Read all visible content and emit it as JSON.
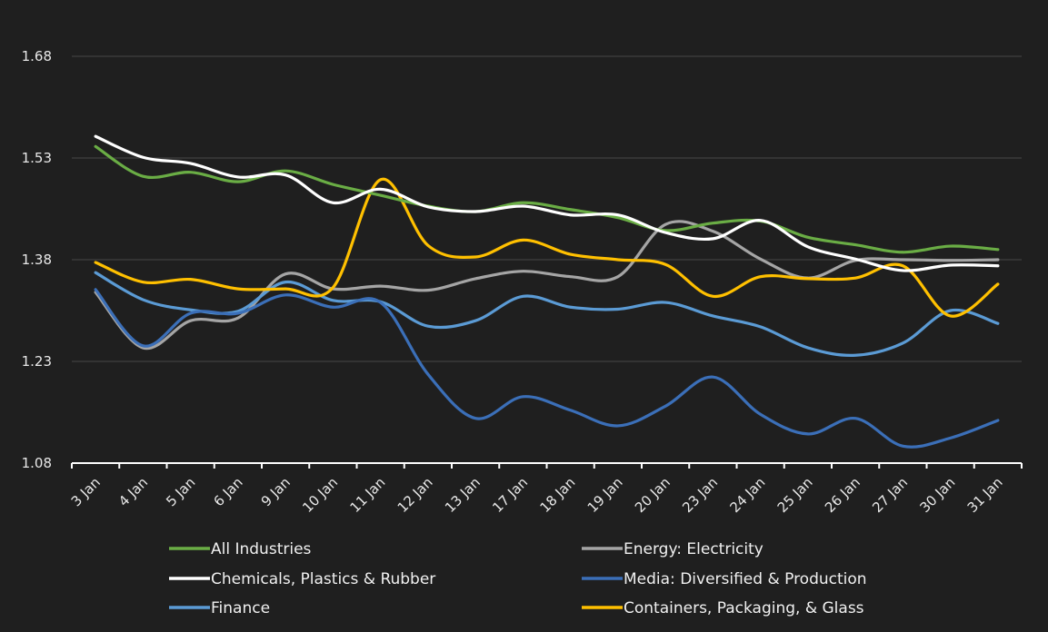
{
  "chart_data": {
    "type": "line",
    "title": "",
    "xlabel": "",
    "ylabel": "",
    "ylim": [
      1.08,
      1.68
    ],
    "yticks": [
      "1.08",
      "1.23",
      "1.38",
      "1.53",
      "1.68"
    ],
    "ytick_values": [
      1.08,
      1.23,
      1.38,
      1.53,
      1.68
    ],
    "grid": true,
    "smooth": true,
    "legend_position": "bottom",
    "categories": [
      "3 Jan",
      "4 Jan",
      "5 Jan",
      "6 Jan",
      "9 Jan",
      "10 Jan",
      "11 Jan",
      "12 Jan",
      "13 Jan",
      "17 Jan",
      "18 Jan",
      "19 Jan",
      "20 Jan",
      "23 Jan",
      "24 Jan",
      "25 Jan",
      "26 Jan",
      "27 Jan",
      "30 Jan",
      "31 Jan"
    ],
    "series": [
      {
        "name": "All Industries",
        "color": "#6aad45",
        "values": [
          1.547,
          1.503,
          1.509,
          1.495,
          1.511,
          1.491,
          1.475,
          1.459,
          1.451,
          1.464,
          1.454,
          1.442,
          1.423,
          1.434,
          1.437,
          1.413,
          1.402,
          1.391,
          1.4,
          1.395
        ]
      },
      {
        "name": "Energy: Electricity",
        "color": "#a5a5a5",
        "values": [
          1.332,
          1.25,
          1.29,
          1.294,
          1.359,
          1.337,
          1.341,
          1.335,
          1.352,
          1.363,
          1.355,
          1.355,
          1.432,
          1.422,
          1.381,
          1.353,
          1.379,
          1.38,
          1.379,
          1.38
        ]
      },
      {
        "name": "Chemicals, Plastics & Rubber",
        "color": "#ffffff",
        "values": [
          1.562,
          1.531,
          1.522,
          1.502,
          1.505,
          1.464,
          1.484,
          1.458,
          1.451,
          1.459,
          1.446,
          1.446,
          1.42,
          1.411,
          1.438,
          1.399,
          1.381,
          1.364,
          1.372,
          1.371
        ]
      },
      {
        "name": "Media: Diversified & Production",
        "color": "#3b6fb8",
        "values": [
          1.336,
          1.253,
          1.301,
          1.301,
          1.328,
          1.31,
          1.317,
          1.211,
          1.146,
          1.178,
          1.158,
          1.135,
          1.164,
          1.207,
          1.152,
          1.123,
          1.146,
          1.105,
          1.117,
          1.143
        ]
      },
      {
        "name": "Finance",
        "color": "#5b9bd5",
        "values": [
          1.361,
          1.321,
          1.306,
          1.304,
          1.347,
          1.32,
          1.318,
          1.282,
          1.29,
          1.326,
          1.31,
          1.307,
          1.317,
          1.297,
          1.281,
          1.25,
          1.239,
          1.257,
          1.305,
          1.286
        ]
      },
      {
        "name": "Containers, Packaging, & Glass",
        "color": "#ffc000",
        "values": [
          1.376,
          1.347,
          1.351,
          1.337,
          1.337,
          1.339,
          1.498,
          1.401,
          1.384,
          1.409,
          1.388,
          1.38,
          1.373,
          1.326,
          1.355,
          1.352,
          1.353,
          1.371,
          1.297,
          1.344
        ]
      }
    ]
  }
}
